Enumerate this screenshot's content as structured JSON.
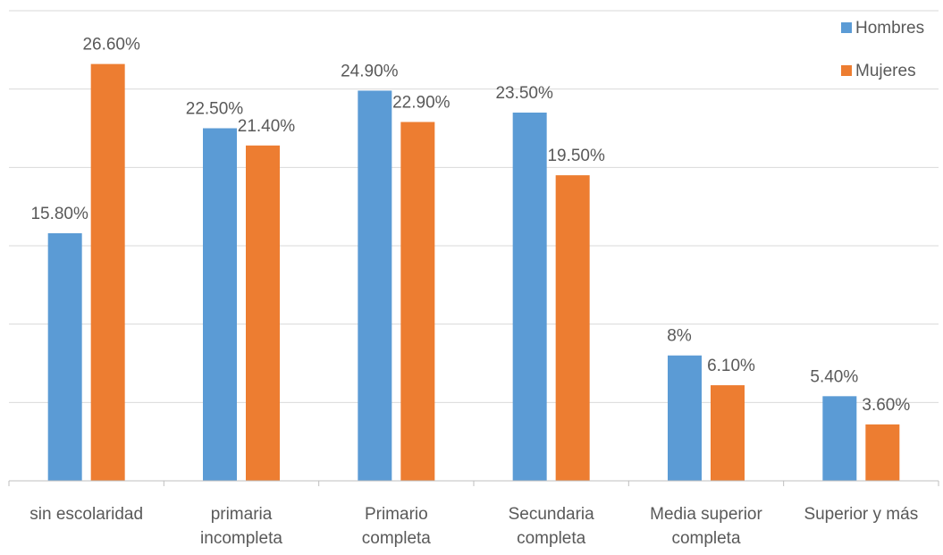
{
  "chart_data": {
    "type": "bar",
    "categories": [
      [
        "sin escolaridad"
      ],
      [
        "primaria",
        "incompleta"
      ],
      [
        "Primario",
        "completa"
      ],
      [
        "Secundaria",
        "completa"
      ],
      [
        "Media superior",
        "completa"
      ],
      [
        "Superior y más"
      ]
    ],
    "series": [
      {
        "name": "Hombres",
        "color": "#5B9BD5",
        "values": [
          15.8,
          22.5,
          24.9,
          23.5,
          8.0,
          5.4
        ],
        "labels": [
          "15.80%",
          "22.50%",
          "24.90%",
          "23.50%",
          "8%",
          "5.40%"
        ]
      },
      {
        "name": "Mujeres",
        "color": "#ED7D31",
        "values": [
          26.6,
          21.4,
          22.9,
          19.5,
          6.1,
          3.6
        ],
        "labels": [
          "26.60%",
          "21.40%",
          "22.90%",
          "19.50%",
          "6.10%",
          "3.60%"
        ]
      }
    ],
    "ylim": [
      0,
      30
    ],
    "y_gridlines": [
      5,
      10,
      15,
      20,
      25,
      30
    ],
    "grid": true,
    "gridline_color": "#D9D9D9",
    "legend_position": "top-right",
    "title": "",
    "xlabel": "",
    "ylabel": ""
  }
}
